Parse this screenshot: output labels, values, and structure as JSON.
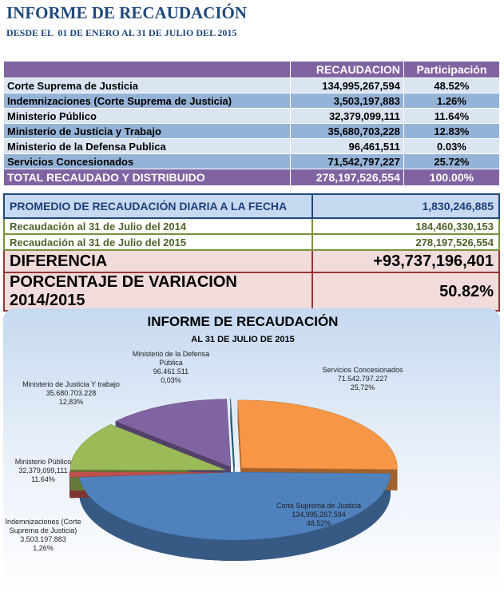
{
  "header": {
    "title": "INFORME DE RECAUDACIÓN",
    "subtitle": "DESDE EL  01 DE ENERO AL 31 DE JULIO DEL 2015"
  },
  "table": {
    "columns": [
      "RECAUDACION",
      "Participación"
    ],
    "rows": [
      [
        "Corte Suprema de Justicia",
        "134,995,267,594",
        "48.52%"
      ],
      [
        "Indemnizaciones (Corte Suprema de Justicia)",
        "3,503,197,883",
        "1.26%"
      ],
      [
        "Ministerio Público",
        "32,379,099,111",
        "11.64%"
      ],
      [
        "Ministerio de Justicia y Trabajo",
        "35,680,703,228",
        "12.83%"
      ],
      [
        "Ministerio de la Defensa Publica",
        "96,461,511",
        "0.03%"
      ],
      [
        "Servicios Concesionados",
        "71,542,797,227",
        "25.72%"
      ]
    ],
    "total": [
      "TOTAL RECAUDADO Y DISTRIBUIDO",
      "278,197,526,554",
      "100.00%"
    ]
  },
  "summary": {
    "average": [
      "PROMEDIO DE RECAUDACIÓN DIARIA A LA FECHA",
      "1,830,246,885"
    ],
    "year2014": [
      "Recaudación al 31 de Julio del 2014",
      "184,460,330,153"
    ],
    "year2015": [
      "Recaudación al 31 de Julio del 2015",
      "278,197,526,554"
    ],
    "difference": [
      "DIFERENCIA",
      "+93,737,196,401"
    ],
    "variation": [
      "PORCENTAJE DE VARIACION 2014/2015",
      "50.82%"
    ]
  },
  "chart_data": {
    "type": "pie",
    "title": "INFORME DE RECAUDACIÓN",
    "subtitle": "AL 31 DE JULIO DE 2015",
    "categories": [
      "Corte Suprema de Justicia",
      "Indemnizaciones (Corte Suprema de Justicia)",
      "Ministerio Público",
      "Ministerio de Justicia Y trabajo",
      "Ministerio de la Defensa Pública",
      "Servicios Concesionados"
    ],
    "values": [
      134995267594,
      3503197883,
      32379099111,
      35680703228,
      96461511,
      71542797227
    ],
    "value_labels": [
      "134,995,267,594",
      "3.503.197.883",
      "32,379,099,111",
      "35.680.703.228",
      "96.461.511",
      "71.542.797.227"
    ],
    "percents": [
      48.52,
      1.26,
      11.64,
      12.83,
      0.03,
      25.72
    ],
    "percent_labels": [
      "48.52%",
      "1,26%",
      "11.64%",
      "12,83%",
      "0,03%",
      "25,72%"
    ],
    "colors": [
      "#4f81bd",
      "#c0504d",
      "#9bbb59",
      "#8064a2",
      "#31859c",
      "#f79646"
    ]
  }
}
